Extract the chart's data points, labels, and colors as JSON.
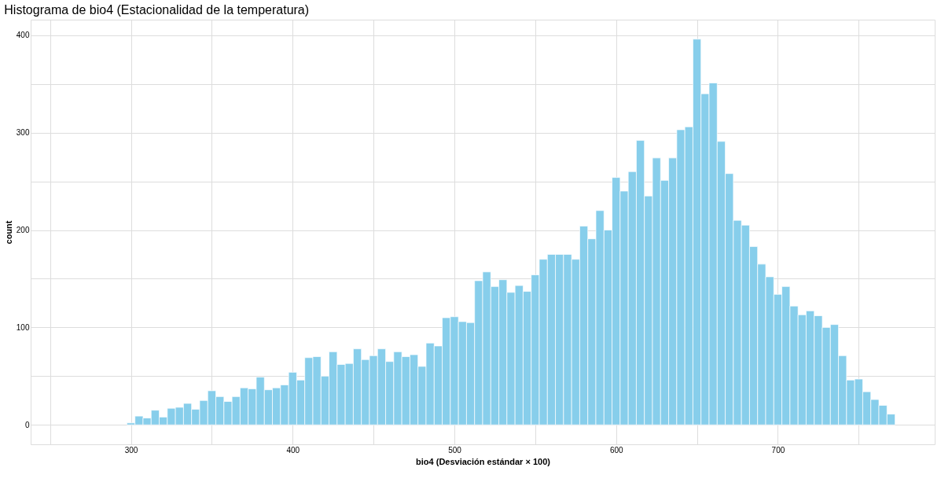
{
  "chart_data": {
    "type": "histogram",
    "title": "Histograma de bio4 (Estacionalidad de la temperatura)",
    "xlabel": "bio4 (Desviación estándar × 100)",
    "ylabel": "count",
    "color": "#87ceeb",
    "bins": [
      297.5,
      302.5,
      307.5,
      312.5,
      317.5,
      322.5,
      327.5,
      332.5,
      337.5,
      342.5,
      347.5,
      352.5,
      357.5,
      362.5,
      367.5,
      372.5,
      377.5,
      382.5,
      387.5,
      392.5,
      397.5,
      402.5,
      407.5,
      412.5,
      417.5,
      422.5,
      427.5,
      432.5,
      437.5,
      442.5,
      447.5,
      452.5,
      457.5,
      462.5,
      467.5,
      472.5,
      477.5,
      482.5,
      487.5,
      492.5,
      497.5,
      502.5,
      507.5,
      512.5,
      517.5,
      522.5,
      527.5,
      532.5,
      537.5,
      542.5,
      547.5,
      552.5,
      557.5,
      562.5,
      567.5,
      572.5,
      577.5,
      582.5,
      587.5,
      592.5,
      597.5,
      602.5,
      607.5,
      612.5,
      617.5,
      622.5,
      627.5,
      632.5,
      637.5,
      642.5,
      647.5,
      652.5,
      657.5,
      662.5,
      667.5,
      672.5,
      677.5,
      682.5,
      687.5,
      692.5,
      697.5,
      702.5,
      707.5,
      712.5,
      717.5,
      722.5,
      727.5,
      732.5,
      737.5,
      742.5,
      747.5,
      752.5,
      757.5,
      762.5,
      767.5,
      772.5
    ],
    "values": [
      2,
      9,
      7,
      15,
      8,
      17,
      18,
      22,
      16,
      25,
      35,
      29,
      24,
      29,
      38,
      37,
      49,
      36,
      38,
      41,
      54,
      46,
      69,
      70,
      50,
      75,
      62,
      63,
      78,
      67,
      71,
      78,
      65,
      75,
      70,
      72,
      60,
      84,
      81,
      110,
      111,
      106,
      105,
      148,
      157,
      142,
      149,
      136,
      143,
      137,
      154,
      170,
      175,
      175,
      175,
      170,
      204,
      191,
      220,
      200,
      254,
      240,
      260,
      292,
      235,
      274,
      251,
      274,
      303,
      306,
      396,
      340,
      351,
      291,
      258,
      210,
      205,
      183,
      165,
      152,
      134,
      142,
      122,
      113,
      117,
      112,
      100,
      103,
      71,
      46,
      47,
      34,
      26,
      20,
      11
    ],
    "xlim": [
      238,
      797
    ],
    "ylim": [
      -20,
      416
    ],
    "xticks": [
      {
        "value": 250,
        "label": null
      },
      300,
      {
        "value": 350,
        "label": null
      },
      400,
      {
        "value": 450,
        "label": null
      },
      500,
      {
        "value": 550,
        "label": null
      },
      600,
      {
        "value": 650,
        "label": null
      },
      700,
      {
        "value": 750,
        "label": null
      }
    ],
    "yticks": [
      0,
      {
        "value": 50,
        "label": null
      },
      100,
      {
        "value": 150,
        "label": null
      },
      200,
      {
        "value": 250,
        "label": null
      },
      300,
      {
        "value": 350,
        "label": null
      },
      400
    ],
    "grid": true
  }
}
